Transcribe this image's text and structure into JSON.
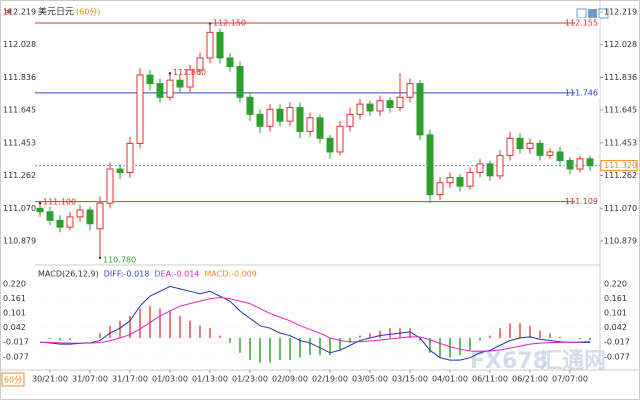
{
  "chart_data": [
    {
      "type": "candlestick",
      "title": "美元日元",
      "subtitle": "(60分)",
      "period_button": "60分",
      "up_color": "#e03030",
      "down_color": "#2e9e2e",
      "categories": [
        null,
        "30/21:00",
        null,
        null,
        null,
        "31/07:00",
        null,
        null,
        null,
        "31/17:00",
        null,
        null,
        null,
        "01/03:00",
        null,
        null,
        null,
        "01/13:00",
        null,
        null,
        null,
        "01/23:00",
        null,
        null,
        null,
        "02/09:00",
        null,
        null,
        null,
        "02/19:00",
        null,
        null,
        null,
        "03/05:00",
        null,
        null,
        null,
        "03/15:00",
        null,
        null,
        null,
        "04/01:00",
        null,
        null,
        null,
        "06/11:00",
        null,
        null,
        null,
        "06/21:00",
        null,
        null,
        null,
        "07/07:00",
        null,
        null
      ],
      "open": [
        111.07,
        111.05,
        111.0,
        110.96,
        111.02,
        111.06,
        110.95,
        111.1,
        111.3,
        111.28,
        111.45,
        111.85,
        111.8,
        111.72,
        111.82,
        111.78,
        111.88,
        111.95,
        112.1,
        111.95,
        111.9,
        111.72,
        111.62,
        111.55,
        111.65,
        111.58,
        111.66,
        111.52,
        111.6,
        111.48,
        111.4,
        111.55,
        111.62,
        111.68,
        111.64,
        111.7,
        111.66,
        111.72,
        111.8,
        111.5,
        111.15,
        111.22,
        111.25,
        111.2,
        111.28,
        111.33,
        111.26,
        111.38,
        111.48,
        111.42,
        111.45,
        111.38,
        111.4,
        111.35,
        111.3,
        111.36
      ],
      "high": [
        111.1,
        111.08,
        111.03,
        111.05,
        111.09,
        111.08,
        111.14,
        111.34,
        111.33,
        111.49,
        111.89,
        111.88,
        111.83,
        111.86,
        111.85,
        111.91,
        111.98,
        112.15,
        112.12,
        111.98,
        111.93,
        111.75,
        111.65,
        111.68,
        111.68,
        111.69,
        111.69,
        111.63,
        111.62,
        111.5,
        111.58,
        111.66,
        111.71,
        111.7,
        111.73,
        111.72,
        111.86,
        111.83,
        111.82,
        111.53,
        111.25,
        111.28,
        111.27,
        111.31,
        111.36,
        111.35,
        111.41,
        111.52,
        111.51,
        111.48,
        111.47,
        111.42,
        111.43,
        111.37,
        111.38,
        111.38
      ],
      "low": [
        111.02,
        110.97,
        110.93,
        110.94,
        110.99,
        110.94,
        110.78,
        111.07,
        111.24,
        111.25,
        111.42,
        111.76,
        111.69,
        111.7,
        111.75,
        111.75,
        111.85,
        111.92,
        111.92,
        111.87,
        111.69,
        111.58,
        111.51,
        111.52,
        111.55,
        111.55,
        111.48,
        111.49,
        111.45,
        111.36,
        111.38,
        111.52,
        111.59,
        111.61,
        111.61,
        111.63,
        111.64,
        111.69,
        111.47,
        111.1,
        111.12,
        111.19,
        111.17,
        111.18,
        111.25,
        111.23,
        111.24,
        111.35,
        111.39,
        111.39,
        111.35,
        111.36,
        111.32,
        111.27,
        111.28,
        111.29
      ],
      "close": [
        111.05,
        111.0,
        110.96,
        111.02,
        111.06,
        110.98,
        111.1,
        111.3,
        111.28,
        111.45,
        111.85,
        111.8,
        111.72,
        111.82,
        111.78,
        111.88,
        111.95,
        112.1,
        111.95,
        111.9,
        111.72,
        111.62,
        111.55,
        111.65,
        111.58,
        111.66,
        111.52,
        111.6,
        111.48,
        111.4,
        111.55,
        111.62,
        111.68,
        111.64,
        111.7,
        111.66,
        111.72,
        111.8,
        111.5,
        111.15,
        111.22,
        111.25,
        111.2,
        111.28,
        111.33,
        111.26,
        111.38,
        111.48,
        111.42,
        111.45,
        111.38,
        111.4,
        111.35,
        111.3,
        111.36,
        111.32
      ],
      "ylim": [
        110.756,
        112.26
      ],
      "yticks": [
        112.219,
        112.028,
        111.836,
        111.645,
        111.453,
        111.262,
        {
          "value": 111.07,
          "label": "111.070"
        },
        110.879
      ],
      "levels": [
        {
          "value": 112.155,
          "label": "112.155",
          "color": "#e03030"
        },
        {
          "value": 111.746,
          "label": "111.746",
          "color": "#3344cc"
        },
        {
          "value": 111.109,
          "label": "111.109",
          "color": "#e03030"
        }
      ],
      "current": {
        "value": 111.32,
        "label": "111.320",
        "color": "#f08a20"
      },
      "annotations": [
        {
          "value": 112.15,
          "label": "112.150"
        },
        {
          "value": 111.86,
          "label": "111.860"
        },
        {
          "value": 111.1,
          "label": "111.100"
        },
        {
          "value": 110.78,
          "label": "110.780"
        }
      ]
    },
    {
      "type": "macd",
      "legend": [
        {
          "label": "MACD(26,12,9)",
          "color": "#333333"
        },
        {
          "label": "DIFF:-0.018",
          "color": "#3344cc"
        },
        {
          "label": "DEA:-0.014",
          "color": "#dd22cc"
        },
        {
          "label": "MACD:-0.009",
          "color": "#f08a20"
        }
      ],
      "watermark": [
        "FX678",
        "汇通网"
      ],
      "series": [
        {
          "color": "#2233aa",
          "values": [
            -0.017,
            -0.02,
            -0.025,
            -0.025,
            -0.022,
            -0.02,
            -0.01,
            0.02,
            0.04,
            0.07,
            0.13,
            0.17,
            0.19,
            0.21,
            0.2,
            0.19,
            0.18,
            0.19,
            0.17,
            0.15,
            0.11,
            0.08,
            0.05,
            0.04,
            0.02,
            0.01,
            -0.01,
            -0.02,
            -0.04,
            -0.06,
            -0.05,
            -0.03,
            -0.01,
            0.0,
            0.01,
            0.015,
            0.02,
            0.025,
            0.0,
            -0.05,
            -0.08,
            -0.09,
            -0.09,
            -0.08,
            -0.06,
            -0.05,
            -0.03,
            -0.01,
            0.0,
            0.005,
            -0.005,
            -0.01,
            -0.015,
            -0.017,
            -0.018,
            -0.018
          ]
        },
        {
          "color": "#dd22cc",
          "values": [
            -0.017,
            -0.018,
            -0.02,
            -0.021,
            -0.021,
            -0.021,
            -0.019,
            -0.011,
            0.0,
            0.014,
            0.037,
            0.063,
            0.09,
            0.11,
            0.13,
            0.14,
            0.15,
            0.16,
            0.165,
            0.16,
            0.15,
            0.14,
            0.12,
            0.1,
            0.085,
            0.07,
            0.05,
            0.035,
            0.02,
            0.0,
            -0.01,
            -0.015,
            -0.015,
            -0.012,
            -0.008,
            -0.004,
            0.0,
            0.005,
            0.004,
            -0.007,
            -0.022,
            -0.035,
            -0.046,
            -0.053,
            -0.054,
            -0.053,
            -0.049,
            -0.041,
            -0.033,
            -0.025,
            -0.021,
            -0.019,
            -0.018,
            -0.017,
            -0.016,
            -0.014
          ]
        }
      ],
      "histogram": {
        "up_color": "#e05050",
        "down_color": "#3aa03a",
        "values": [
          0,
          -0.004,
          -0.01,
          -0.008,
          -0.002,
          0.002,
          0.02,
          0.05,
          0.07,
          0.09,
          0.12,
          0.13,
          0.12,
          0.11,
          0.09,
          0.07,
          0.05,
          0.04,
          0.01,
          -0.02,
          -0.06,
          -0.09,
          -0.1,
          -0.1,
          -0.09,
          -0.09,
          -0.08,
          -0.07,
          -0.07,
          -0.07,
          -0.05,
          -0.02,
          0.01,
          0.02,
          0.03,
          0.04,
          0.04,
          0.04,
          -0.01,
          -0.06,
          -0.08,
          -0.08,
          -0.07,
          -0.05,
          -0.01,
          0.01,
          0.04,
          0.06,
          0.06,
          0.05,
          0.03,
          0.02,
          0.005,
          0.0,
          -0.004,
          -0.009
        ]
      },
      "ylim": [
        -0.122,
        0.236
      ],
      "yticks": [
        {
          "value": 0.22,
          "label": "0.220"
        },
        0.161,
        0.101,
        0.042,
        -0.017,
        -0.077
      ]
    }
  ]
}
